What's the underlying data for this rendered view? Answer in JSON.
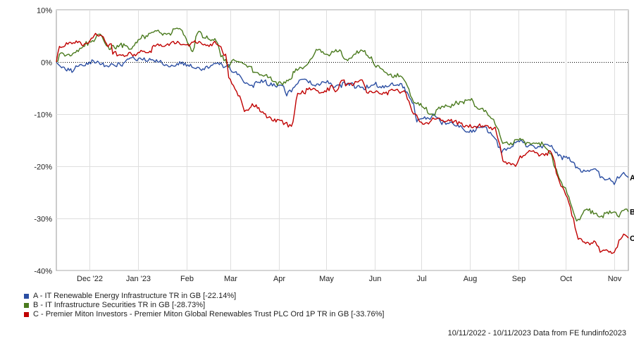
{
  "chart_data": {
    "type": "line",
    "ylim": [
      -40,
      10
    ],
    "yticks": [
      10,
      0,
      -10,
      -20,
      -30,
      -40
    ],
    "ytick_labels": [
      "10%",
      "0%",
      "-10%",
      "-20%",
      "-30%",
      "-40%"
    ],
    "x_range": [
      "2022-11-10",
      "2023-11-10"
    ],
    "x_ticks": [
      {
        "date": "2022-12-01",
        "label": "Dec '22"
      },
      {
        "date": "2023-01-01",
        "label": "Jan '23"
      },
      {
        "date": "2023-02-01",
        "label": "Feb"
      },
      {
        "date": "2023-03-01",
        "label": "Mar"
      },
      {
        "date": "2023-04-01",
        "label": "Apr"
      },
      {
        "date": "2023-05-01",
        "label": "May"
      },
      {
        "date": "2023-06-01",
        "label": "Jun"
      },
      {
        "date": "2023-07-01",
        "label": "Jul"
      },
      {
        "date": "2023-08-01",
        "label": "Aug"
      },
      {
        "date": "2023-09-01",
        "label": "Sep"
      },
      {
        "date": "2023-10-01",
        "label": "Oct"
      },
      {
        "date": "2023-11-01",
        "label": "Nov"
      }
    ],
    "grid": true,
    "zero_line": "dotted",
    "legend_position": "bottom-left",
    "series": [
      {
        "name": "A - IT Renewable Energy Infrastructure TR in GB [-22.14%]",
        "end_label": "A",
        "color": "#2b4ea2",
        "points": [
          [
            "2022-11-10",
            0
          ],
          [
            "2022-11-15",
            -1
          ],
          [
            "2022-11-20",
            -2
          ],
          [
            "2022-11-25",
            -0.5
          ],
          [
            "2022-12-01",
            0
          ],
          [
            "2022-12-08",
            -0.5
          ],
          [
            "2022-12-15",
            -0.3
          ],
          [
            "2022-12-22",
            -0.8
          ],
          [
            "2022-12-28",
            0.8
          ],
          [
            "2023-01-05",
            0.8
          ],
          [
            "2023-01-12",
            0
          ],
          [
            "2023-01-19",
            -0.5
          ],
          [
            "2023-01-26",
            -0.3
          ],
          [
            "2023-02-01",
            -0.8
          ],
          [
            "2023-02-08",
            -1
          ],
          [
            "2023-02-15",
            -1.2
          ],
          [
            "2023-02-22",
            -0.5
          ],
          [
            "2023-02-28",
            -0.5
          ],
          [
            "2023-03-03",
            -2
          ],
          [
            "2023-03-08",
            -3
          ],
          [
            "2023-03-14",
            -4.5
          ],
          [
            "2023-03-20",
            -4
          ],
          [
            "2023-03-27",
            -4
          ],
          [
            "2023-04-03",
            -4.5
          ],
          [
            "2023-04-06",
            -6.5
          ],
          [
            "2023-04-10",
            -5
          ],
          [
            "2023-04-14",
            -3.5
          ],
          [
            "2023-04-20",
            -4
          ],
          [
            "2023-04-26",
            -4.2
          ],
          [
            "2023-05-01",
            -4
          ],
          [
            "2023-05-05",
            -4.5
          ],
          [
            "2023-05-10",
            -4.3
          ],
          [
            "2023-05-16",
            -4.5
          ],
          [
            "2023-05-22",
            -4.5
          ],
          [
            "2023-05-28",
            -5
          ],
          [
            "2023-06-01",
            -4.3
          ],
          [
            "2023-06-08",
            -4.5
          ],
          [
            "2023-06-14",
            -4.5
          ],
          [
            "2023-06-20",
            -4.8
          ],
          [
            "2023-06-26",
            -8
          ],
          [
            "2023-06-28",
            -11.5
          ],
          [
            "2023-07-03",
            -10.5
          ],
          [
            "2023-07-10",
            -10.5
          ],
          [
            "2023-07-14",
            -12
          ],
          [
            "2023-07-20",
            -11.5
          ],
          [
            "2023-07-25",
            -12.5
          ],
          [
            "2023-07-28",
            -13
          ],
          [
            "2023-08-03",
            -13
          ],
          [
            "2023-08-08",
            -12.5
          ],
          [
            "2023-08-14",
            -13.5
          ],
          [
            "2023-08-18",
            -15
          ],
          [
            "2023-08-21",
            -17.5
          ],
          [
            "2023-08-25",
            -16.5
          ],
          [
            "2023-08-30",
            -15.5
          ],
          [
            "2023-09-04",
            -15.5
          ],
          [
            "2023-09-10",
            -16
          ],
          [
            "2023-09-16",
            -16.5
          ],
          [
            "2023-09-22",
            -16
          ],
          [
            "2023-09-28",
            -18
          ],
          [
            "2023-10-04",
            -19
          ],
          [
            "2023-10-10",
            -20.5
          ],
          [
            "2023-10-16",
            -21
          ],
          [
            "2023-10-20",
            -20.5
          ],
          [
            "2023-10-24",
            -22
          ],
          [
            "2023-10-28",
            -22.5
          ],
          [
            "2023-11-01",
            -23.5
          ],
          [
            "2023-11-03",
            -22
          ],
          [
            "2023-11-06",
            -21.5
          ],
          [
            "2023-11-10",
            -22.14
          ]
        ]
      },
      {
        "name": "B - IT Infrastructure Securities TR in GB [-28.73%]",
        "end_label": "B",
        "color": "#4a7a1e",
        "points": [
          [
            "2022-11-10",
            0
          ],
          [
            "2022-11-12",
            1.5
          ],
          [
            "2022-11-18",
            1.5
          ],
          [
            "2022-11-24",
            2
          ],
          [
            "2022-11-28",
            3
          ],
          [
            "2022-12-01",
            4
          ],
          [
            "2022-12-05",
            4.5
          ],
          [
            "2022-12-09",
            5
          ],
          [
            "2022-12-13",
            3
          ],
          [
            "2022-12-18",
            2.5
          ],
          [
            "2022-12-23",
            3.5
          ],
          [
            "2022-12-28",
            2.5
          ],
          [
            "2023-01-03",
            4.5
          ],
          [
            "2023-01-08",
            5.5
          ],
          [
            "2023-01-12",
            6
          ],
          [
            "2023-01-16",
            5.5
          ],
          [
            "2023-01-21",
            5.5
          ],
          [
            "2023-01-26",
            6.5
          ],
          [
            "2023-01-31",
            5
          ],
          [
            "2023-02-05",
            2
          ],
          [
            "2023-02-08",
            5.5
          ],
          [
            "2023-02-14",
            5
          ],
          [
            "2023-02-20",
            4
          ],
          [
            "2023-02-23",
            1
          ],
          [
            "2023-02-26",
            0.5
          ],
          [
            "2023-02-28",
            -1
          ],
          [
            "2023-03-03",
            0.5
          ],
          [
            "2023-03-08",
            0
          ],
          [
            "2023-03-12",
            -1
          ],
          [
            "2023-03-18",
            -2
          ],
          [
            "2023-03-25",
            -3
          ],
          [
            "2023-03-31",
            -4.5
          ],
          [
            "2023-04-06",
            -3.5
          ],
          [
            "2023-04-11",
            -2
          ],
          [
            "2023-04-17",
            -1
          ],
          [
            "2023-04-21",
            0.5
          ],
          [
            "2023-04-24",
            1.8
          ],
          [
            "2023-04-29",
            2
          ],
          [
            "2023-05-04",
            1.5
          ],
          [
            "2023-05-09",
            2
          ],
          [
            "2023-05-14",
            0.5
          ],
          [
            "2023-05-20",
            1.5
          ],
          [
            "2023-05-25",
            2
          ],
          [
            "2023-05-30",
            1
          ],
          [
            "2023-06-02",
            -1
          ],
          [
            "2023-06-08",
            -2
          ],
          [
            "2023-06-14",
            -2.5
          ],
          [
            "2023-06-20",
            -3.5
          ],
          [
            "2023-06-24",
            -6.5
          ],
          [
            "2023-06-28",
            -8
          ],
          [
            "2023-07-03",
            -9
          ],
          [
            "2023-07-07",
            -10
          ],
          [
            "2023-07-13",
            -9
          ],
          [
            "2023-07-18",
            -8.5
          ],
          [
            "2023-07-23",
            -7.5
          ],
          [
            "2023-07-28",
            -8
          ],
          [
            "2023-08-02",
            -7
          ],
          [
            "2023-08-06",
            -9
          ],
          [
            "2023-08-10",
            -9.5
          ],
          [
            "2023-08-16",
            -11
          ],
          [
            "2023-08-18",
            -12.5
          ],
          [
            "2023-08-21",
            -15
          ],
          [
            "2023-08-27",
            -15.5
          ],
          [
            "2023-09-01",
            -15
          ],
          [
            "2023-09-08",
            -15.5
          ],
          [
            "2023-09-14",
            -15.5
          ],
          [
            "2023-09-20",
            -17
          ],
          [
            "2023-09-25",
            -20.5
          ],
          [
            "2023-09-30",
            -24
          ],
          [
            "2023-10-04",
            -27
          ],
          [
            "2023-10-08",
            -30.5
          ],
          [
            "2023-10-12",
            -29
          ],
          [
            "2023-10-18",
            -28.5
          ],
          [
            "2023-10-24",
            -29.5
          ],
          [
            "2023-10-30",
            -29
          ],
          [
            "2023-11-03",
            -29.5
          ],
          [
            "2023-11-06",
            -28.5
          ],
          [
            "2023-11-10",
            -28.73
          ]
        ]
      },
      {
        "name": "C - Premier Miton Investors - Premier Miton Global Renewables Trust PLC Ord 1P TR in GB [-33.76%]",
        "end_label": "C",
        "color": "#c00000",
        "points": [
          [
            "2022-11-10",
            0
          ],
          [
            "2022-11-12",
            3
          ],
          [
            "2022-11-20",
            3.5
          ],
          [
            "2022-11-28",
            3.5
          ],
          [
            "2022-12-05",
            5.5
          ],
          [
            "2022-12-09",
            5
          ],
          [
            "2022-12-12",
            3.5
          ],
          [
            "2022-12-15",
            3.5
          ],
          [
            "2022-12-16",
            1.5
          ],
          [
            "2022-12-28",
            1.5
          ],
          [
            "2023-01-02",
            1.8
          ],
          [
            "2023-01-06",
            1.8
          ],
          [
            "2023-01-07",
            1.8
          ],
          [
            "2023-01-12",
            3
          ],
          [
            "2023-01-18",
            3
          ],
          [
            "2023-01-20",
            3.5
          ],
          [
            "2023-02-20",
            3.5
          ],
          [
            "2023-02-24",
            2
          ],
          [
            "2023-02-26",
            1.5
          ],
          [
            "2023-02-28",
            -3
          ],
          [
            "2023-03-03",
            -4.5
          ],
          [
            "2023-03-07",
            -6.5
          ],
          [
            "2023-03-10",
            -9.5
          ],
          [
            "2023-03-15",
            -8
          ],
          [
            "2023-03-20",
            -9.5
          ],
          [
            "2023-03-26",
            -10.5
          ],
          [
            "2023-03-31",
            -11
          ],
          [
            "2023-04-04",
            -12
          ],
          [
            "2023-04-08",
            -12
          ],
          [
            "2023-04-10",
            -11.5
          ],
          [
            "2023-04-13",
            -6
          ],
          [
            "2023-04-16",
            -5.5
          ],
          [
            "2023-05-03",
            -5.5
          ],
          [
            "2023-05-05",
            -4.5
          ],
          [
            "2023-05-08",
            -5.5
          ],
          [
            "2023-05-10",
            -4
          ],
          [
            "2023-05-25",
            -4
          ],
          [
            "2023-05-28",
            -6
          ],
          [
            "2023-06-20",
            -5.5
          ],
          [
            "2023-06-23",
            -7.5
          ],
          [
            "2023-06-26",
            -10
          ],
          [
            "2023-06-30",
            -11.5
          ],
          [
            "2023-07-20",
            -11
          ],
          [
            "2023-07-24",
            -12
          ],
          [
            "2023-08-01",
            -12
          ],
          [
            "2023-08-08",
            -12.5
          ],
          [
            "2023-08-15",
            -13
          ],
          [
            "2023-08-17",
            -12.5
          ],
          [
            "2023-08-19",
            -15
          ],
          [
            "2023-08-22",
            -19
          ],
          [
            "2023-08-28",
            -19.5
          ],
          [
            "2023-08-31",
            -19.5
          ],
          [
            "2023-09-02",
            -18
          ],
          [
            "2023-09-06",
            -17.5
          ],
          [
            "2023-09-22",
            -17.5
          ],
          [
            "2023-09-26",
            -22
          ],
          [
            "2023-09-29",
            -24
          ],
          [
            "2023-10-03",
            -27
          ],
          [
            "2023-10-06",
            -30
          ],
          [
            "2023-10-09",
            -34
          ],
          [
            "2023-10-12",
            -34.5
          ],
          [
            "2023-10-20",
            -34.5
          ],
          [
            "2023-10-23",
            -36.5
          ],
          [
            "2023-10-27",
            -36
          ],
          [
            "2023-11-01",
            -36.5
          ],
          [
            "2023-11-03",
            -35.5
          ],
          [
            "2023-11-05",
            -34
          ],
          [
            "2023-11-07",
            -33
          ],
          [
            "2023-11-10",
            -33.76
          ]
        ]
      }
    ],
    "footer": "10/11/2022 - 10/11/2023 Data from FE fundinfo2023"
  }
}
